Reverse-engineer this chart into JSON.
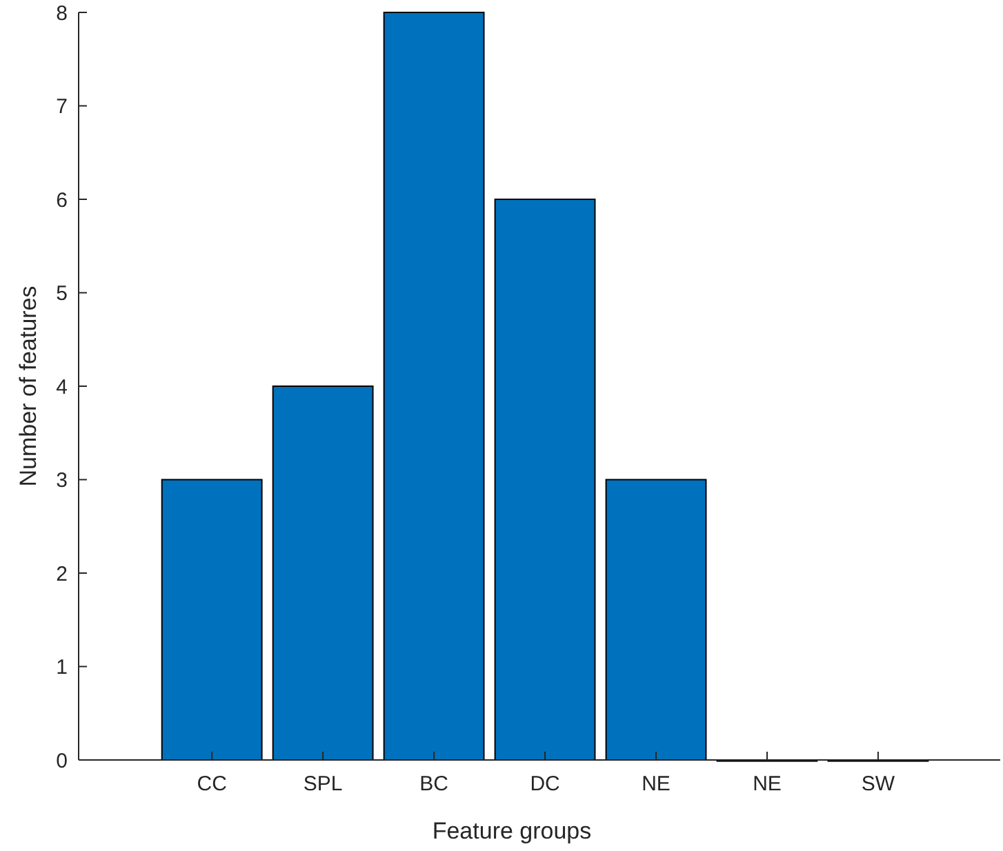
{
  "chart_data": {
    "type": "bar",
    "xlabel": "Feature groups",
    "ylabel": "Number of features",
    "categories": [
      "CC",
      "SPL",
      "BC",
      "DC",
      "NE",
      "NE",
      "SW"
    ],
    "values": [
      3,
      4,
      8,
      6,
      3,
      0,
      0
    ],
    "color": "#0072bd",
    "ylim": [
      0,
      8
    ],
    "yticks": [
      0,
      1,
      2,
      3,
      4,
      5,
      6,
      7,
      8
    ],
    "grid": false
  }
}
